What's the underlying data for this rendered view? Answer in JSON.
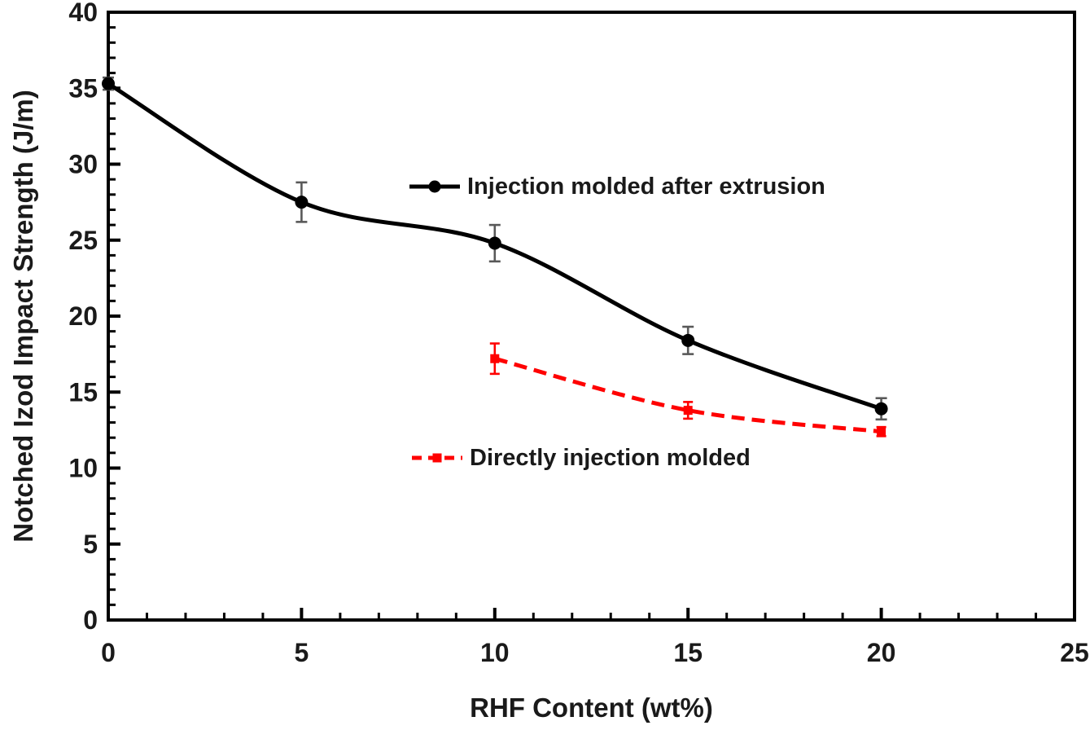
{
  "chart_data": {
    "type": "line",
    "title": "",
    "xlabel": "RHF Content (wt%)",
    "ylabel": "Notched Izod Impact Strength (J/m)",
    "xlim": [
      0,
      25
    ],
    "ylim": [
      0,
      40
    ],
    "x_major_ticks": [
      0,
      5,
      10,
      15,
      20,
      25
    ],
    "y_major_ticks": [
      0,
      5,
      10,
      15,
      20,
      25,
      30,
      35,
      40
    ],
    "x_minor_step": 1,
    "y_minor_step": 1,
    "grid": false,
    "legend_position": "inside",
    "axis_color": "#000000",
    "series": [
      {
        "name": "Injection molded after extrusion",
        "color": "#000000",
        "line_style": "solid",
        "marker": "circle",
        "x": [
          0,
          5,
          10,
          15,
          20
        ],
        "y": [
          35.3,
          27.5,
          24.8,
          18.4,
          13.9
        ],
        "yerr": [
          0.4,
          1.3,
          1.2,
          0.9,
          0.7
        ],
        "error_color": "#595959"
      },
      {
        "name": "Directly injection molded",
        "color": "#ff0000",
        "line_style": "dashed",
        "marker": "square",
        "x": [
          10,
          15,
          20
        ],
        "y": [
          17.2,
          13.8,
          12.4
        ],
        "yerr": [
          1.0,
          0.55,
          0.3
        ],
        "error_color": "#ff0000"
      }
    ]
  }
}
